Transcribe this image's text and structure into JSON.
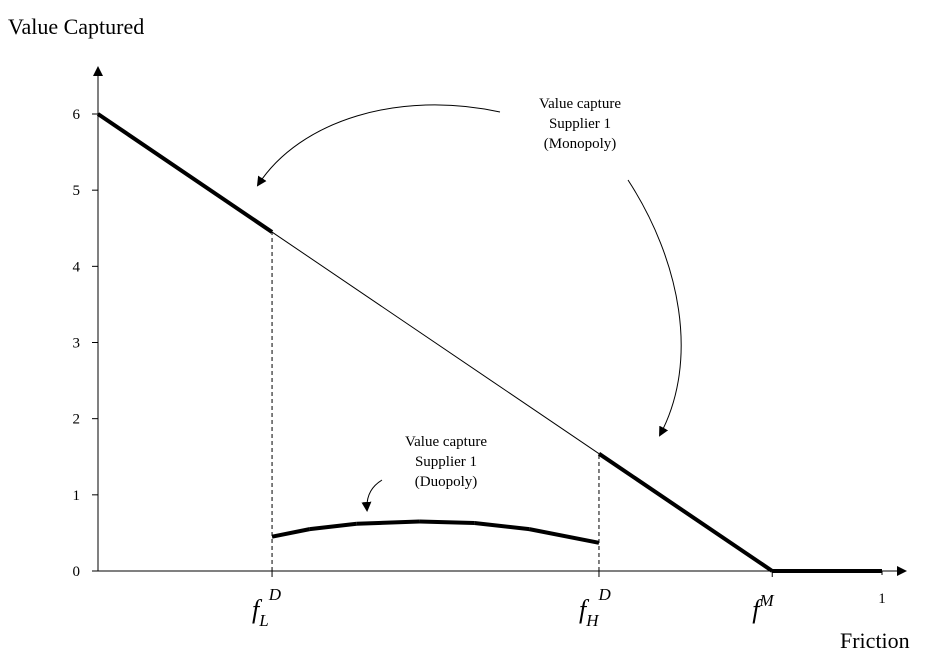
{
  "chart_data": {
    "type": "line",
    "title": "Value Captured",
    "x_label": "Friction",
    "xlim": [
      0,
      1
    ],
    "ylim": [
      0,
      6
    ],
    "yticks": [
      0,
      1,
      2,
      3,
      4,
      5,
      6
    ],
    "xticks": [
      {
        "value": 0.222,
        "label": {
          "base": "f",
          "sub": "L",
          "sup": "D"
        }
      },
      {
        "value": 0.639,
        "label": {
          "base": "f",
          "sub": "H",
          "sup": "D"
        }
      },
      {
        "value": 0.86,
        "label": {
          "base": "f",
          "sup": "M"
        }
      },
      1
    ],
    "series": [
      {
        "color": "#000000",
        "x": [
          0,
          0.222,
          0.639,
          0.86,
          1
        ],
        "values": [
          6,
          4.45,
          1.54,
          0,
          0
        ],
        "segment_widths": [
          4,
          1,
          4,
          4
        ]
      },
      {
        "color": "#000000",
        "x": [
          0.222,
          0.27,
          0.33,
          0.41,
          0.48,
          0.55,
          0.639
        ],
        "values": [
          0.45,
          0.55,
          0.62,
          0.65,
          0.63,
          0.55,
          0.37
        ],
        "segment_widths": [
          4,
          4,
          4,
          4,
          4,
          4
        ]
      }
    ],
    "annotations": [
      {
        "lines": [
          "Value capture",
          "Supplier 1",
          "(Monopoly)"
        ]
      },
      {
        "lines": [
          "Value capture",
          "Supplier 1",
          "(Duopoly)"
        ]
      }
    ]
  }
}
